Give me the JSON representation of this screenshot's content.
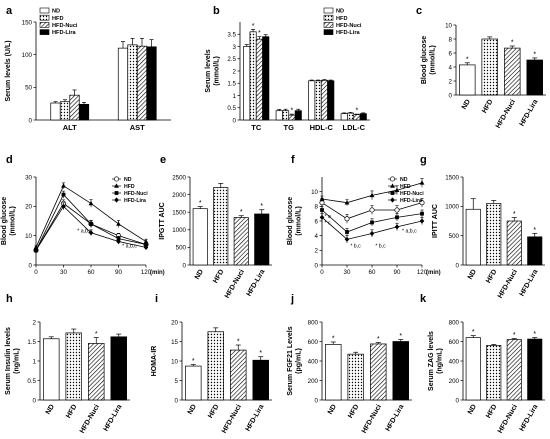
{
  "groups": [
    "ND",
    "HFD",
    "HFD-Nuci",
    "HFD-Lira"
  ],
  "colors": {
    "ND": "#ffffff",
    "HFD": "#ffffff",
    "HFD-Nuci": "#ffffff",
    "HFD-Lira": "#000000",
    "axis": "#000000"
  },
  "fills": {
    "ND": "plain",
    "HFD": "dots",
    "HFD-Nuci": "hatch",
    "HFD-Lira": "solid"
  },
  "markers": {
    "ND": "open-circle",
    "HFD": "filled-triangle",
    "HFD-Nuci": "filled-square",
    "HFD-Lira": "filled-diamond"
  },
  "chart_data": [
    {
      "panel": "a",
      "type": "bar",
      "ylabel": "Serum levels (U/L)",
      "categories": [
        "ALT",
        "AST"
      ],
      "ylim": [
        0,
        150
      ],
      "yticks": [
        0,
        50,
        100,
        150
      ],
      "series": [
        {
          "name": "ND",
          "values": [
            26,
            110
          ],
          "err": [
            2,
            10
          ]
        },
        {
          "name": "HFD",
          "values": [
            28,
            115
          ],
          "err": [
            3,
            10
          ]
        },
        {
          "name": "HFD-Nuci",
          "values": [
            38,
            113
          ],
          "err": [
            8,
            12
          ]
        },
        {
          "name": "HFD-Lira",
          "values": [
            24,
            112
          ],
          "err": [
            3,
            11
          ]
        }
      ],
      "legend": "top-left"
    },
    {
      "panel": "b",
      "type": "bar",
      "ylabel": "Serum levels (mmol/L)",
      "categories": [
        "TC",
        "TG",
        "HDL-C",
        "LDL-C"
      ],
      "ylim": [
        0,
        4
      ],
      "yticks": [
        0,
        0.5,
        1,
        1.5,
        2,
        2.5,
        3,
        3.5
      ],
      "series": [
        {
          "name": "ND",
          "values": [
            3.0,
            0.38,
            1.6,
            0.26
          ],
          "err": [
            0.08,
            0.05,
            0.03,
            0.03
          ]
        },
        {
          "name": "HFD",
          "values": [
            3.6,
            0.38,
            1.6,
            0.28
          ],
          "err": [
            0.1,
            0.06,
            0.03,
            0.03
          ]
        },
        {
          "name": "HFD-Nuci",
          "values": [
            3.3,
            0.2,
            1.62,
            0.22
          ],
          "err": [
            0.1,
            0.04,
            0.03,
            0.02
          ]
        },
        {
          "name": "HFD-Lira",
          "values": [
            3.4,
            0.38,
            1.6,
            0.26
          ],
          "err": [
            0.08,
            0.06,
            0.03,
            0.03
          ]
        }
      ],
      "legend": "top-right",
      "stars": [
        [
          0,
          1
        ],
        [
          0,
          2
        ],
        [
          1,
          2
        ],
        [
          3,
          2
        ]
      ]
    },
    {
      "panel": "c",
      "type": "bar",
      "ylabel": "Blood glucose(mmol/L)",
      "categories": [
        "ND",
        "HFD",
        "HFD-Nuci",
        "HFD-Lira"
      ],
      "ylim": [
        0,
        10
      ],
      "yticks": [
        0,
        2,
        4,
        6,
        8,
        10
      ],
      "values": [
        4.3,
        8.0,
        6.7,
        5.0
      ],
      "err": [
        0.3,
        0.3,
        0.3,
        0.3
      ],
      "stars": [
        0,
        2,
        3
      ]
    },
    {
      "panel": "d",
      "type": "line",
      "ylabel": "Blood glucose(mmol/L)",
      "x": [
        0,
        30,
        60,
        90,
        120
      ],
      "xlim": [
        0,
        120
      ],
      "xticks": [
        0,
        30,
        60,
        90,
        120
      ],
      "xunit": "(min)",
      "ylim": [
        0,
        30
      ],
      "yticks": [
        0,
        10,
        20,
        30
      ],
      "series": [
        {
          "name": "ND",
          "values": [
            5,
            21,
            14,
            10,
            7
          ],
          "err": [
            0.5,
            1.2,
            1.2,
            0.8,
            0.6
          ]
        },
        {
          "name": "HFD",
          "values": [
            6,
            27,
            21,
            14,
            8
          ],
          "err": [
            0.5,
            1,
            1.3,
            1.2,
            0.8
          ]
        },
        {
          "name": "HFD-Nuci",
          "values": [
            5,
            24,
            14,
            9,
            7
          ],
          "err": [
            0.5,
            1.2,
            1.2,
            0.8,
            0.6
          ]
        },
        {
          "name": "HFD-Lira",
          "values": [
            5,
            20,
            11,
            8,
            6
          ],
          "err": [
            0.5,
            1.2,
            1,
            0.8,
            0.6
          ]
        }
      ],
      "annotations": [
        {
          "x": 45,
          "y": 11,
          "text": "a,b,c"
        },
        {
          "x": 94,
          "y": 6,
          "text": "a,b,c"
        }
      ]
    },
    {
      "panel": "e",
      "type": "bar",
      "ylabel": "IPGTT AUC",
      "categories": [
        "ND",
        "HFD",
        "HFD-Nuci",
        "HFD-Lira"
      ],
      "ylim": [
        0,
        2500
      ],
      "yticks": [
        0,
        500,
        1000,
        1500,
        2000,
        2500
      ],
      "values": [
        1600,
        2200,
        1350,
        1450
      ],
      "err": [
        60,
        120,
        50,
        120
      ],
      "stars": [
        0,
        2,
        3
      ]
    },
    {
      "panel": "f",
      "type": "line",
      "ylabel": "Blood glucose(mmol/L)",
      "x": [
        0,
        30,
        60,
        90,
        120
      ],
      "xlim": [
        0,
        120
      ],
      "xticks": [
        0,
        30,
        60,
        90,
        120
      ],
      "xunit": "(min)",
      "ylim": [
        0,
        12
      ],
      "yticks": [
        0,
        2,
        4,
        6,
        8,
        10
      ],
      "series": [
        {
          "name": "ND",
          "values": [
            8.5,
            6.3,
            7.5,
            7.5,
            8.5
          ],
          "err": [
            0.6,
            0.6,
            0.6,
            0.6,
            0.6
          ]
        },
        {
          "name": "HFD",
          "values": [
            9.0,
            8.5,
            9.5,
            10.2,
            11.2
          ],
          "err": [
            0.4,
            0.4,
            0.6,
            0.6,
            0.6
          ]
        },
        {
          "name": "HFD-Nuci",
          "values": [
            7.5,
            4.5,
            5.8,
            6.5,
            7.0
          ],
          "err": [
            0.5,
            0.5,
            0.5,
            0.5,
            0.5
          ]
        },
        {
          "name": "HFD-Lira",
          "values": [
            6.5,
            3.5,
            4.3,
            5.2,
            6.0
          ],
          "err": [
            0.5,
            0.5,
            0.5,
            0.5,
            0.5
          ]
        }
      ],
      "annotations": [
        {
          "x": 3,
          "y": 6.4,
          "text": "a"
        },
        {
          "x": 3,
          "y": 5.5,
          "text": "c"
        },
        {
          "x": 34,
          "y": 2.4,
          "text": "b,c"
        },
        {
          "x": 64,
          "y": 2.4,
          "text": "b,c"
        },
        {
          "x": 96,
          "y": 4.4,
          "text": "a,b,c"
        }
      ]
    },
    {
      "panel": "g",
      "type": "bar",
      "ylabel": "IPITT AUC",
      "categories": [
        "ND",
        "HFD",
        "HFD-Nuci",
        "HFD-Lira"
      ],
      "ylim": [
        0,
        1500
      ],
      "yticks": [
        0,
        500,
        1000,
        1500
      ],
      "values": [
        950,
        1050,
        750,
        480
      ],
      "err": [
        180,
        50,
        60,
        60
      ],
      "stars": [
        2,
        3
      ]
    },
    {
      "panel": "h",
      "type": "bar",
      "ylabel": "Serum Insulin levels (ng/mL)",
      "categories": [
        "ND",
        "HFD",
        "HFD-Nuci",
        "HFD-Lira"
      ],
      "ylim": [
        0,
        2.0
      ],
      "yticks": [
        0,
        0.5,
        1.0,
        1.5,
        2.0
      ],
      "values": [
        1.57,
        1.72,
        1.45,
        1.62
      ],
      "err": [
        0.05,
        0.1,
        0.15,
        0.07
      ],
      "stars": [
        2
      ]
    },
    {
      "panel": "i",
      "type": "bar",
      "ylabel": "HOMA-IR",
      "categories": [
        "ND",
        "HFD",
        "HFD-Nuci",
        "HFD-Lira"
      ],
      "ylim": [
        0,
        20
      ],
      "yticks": [
        0,
        5,
        10,
        15,
        20
      ],
      "values": [
        8.7,
        17.5,
        12.8,
        10.2
      ],
      "err": [
        0.4,
        1.0,
        1.3,
        0.9
      ],
      "stars": [
        0,
        2,
        3
      ]
    },
    {
      "panel": "j",
      "type": "bar",
      "ylabel": "Serum FGF21 Levels (pg/mL)",
      "categories": [
        "ND",
        "HFD",
        "HFD-Nuci",
        "HFD-Lira"
      ],
      "ylim": [
        0,
        800
      ],
      "yticks": [
        0,
        200,
        400,
        600,
        800
      ],
      "values": [
        570,
        470,
        575,
        600
      ],
      "err": [
        25,
        20,
        15,
        20
      ],
      "stars": [
        0,
        2,
        3
      ]
    },
    {
      "panel": "k",
      "type": "bar",
      "ylabel": "Serum ZAG levels (ng/mL)",
      "categories": [
        "ND",
        "HFD",
        "HFD-Nuci",
        "HFD-Lira"
      ],
      "ylim": [
        0,
        800
      ],
      "yticks": [
        0,
        200,
        400,
        600,
        800
      ],
      "values": [
        640,
        560,
        620,
        625
      ],
      "err": [
        20,
        10,
        10,
        15
      ],
      "stars": [
        0,
        2,
        3
      ]
    }
  ]
}
